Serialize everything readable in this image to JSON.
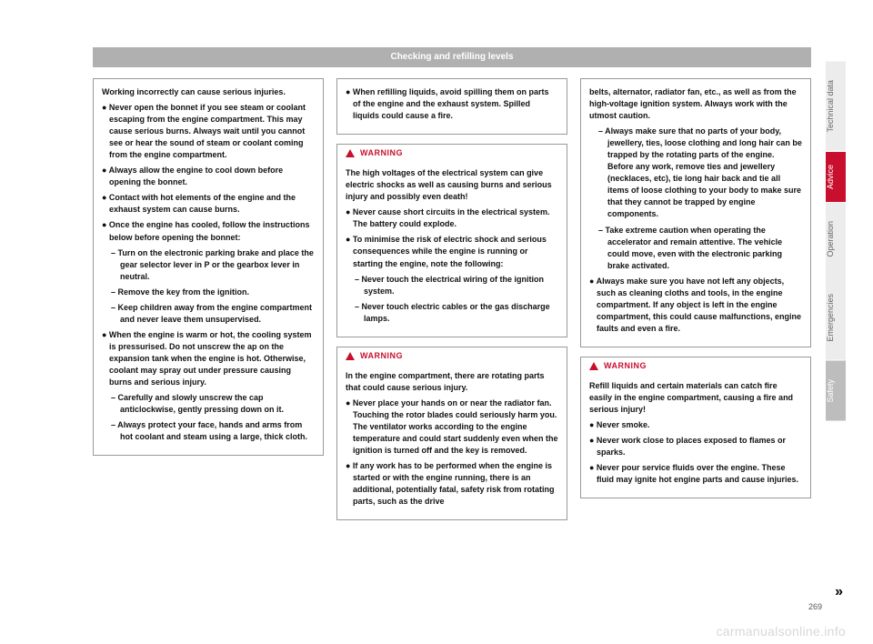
{
  "header": "Checking and refilling levels",
  "col1": {
    "box1": {
      "intro": "Working incorrectly can cause serious injuries.",
      "b1": "● Never open the bonnet if you see steam or coolant escaping from the engine compartment. This may cause serious burns. Always wait until you cannot see or hear the sound of steam or coolant coming from the engine compartment.",
      "b2": "● Always allow the engine to cool down before opening the bonnet.",
      "b3": "● Contact with hot elements of the engine and the exhaust system can cause burns.",
      "b4": "● Once the engine has cooled, follow the instructions below before opening the bonnet:",
      "d1": "– Turn on the electronic parking brake and place the gear selector lever in P or the gearbox lever in neutral.",
      "d2": "– Remove the key from the ignition.",
      "d3": "– Keep children away from the engine compartment and never leave them unsupervised.",
      "b5": "● When the engine is warm or hot, the cooling system is pressurised. Do not unscrew the ap on the expansion tank when the engine is hot. Otherwise, coolant may spray out under pressure causing burns and serious injury.",
      "d4": "– Carefully and slowly unscrew the cap anticlockwise, gently pressing down on it.",
      "d5": "– Always protect your face, hands and arms from hot coolant and steam using a large, thick cloth."
    }
  },
  "col2": {
    "box1": {
      "b1": "● When refilling liquids, avoid spilling them on parts of the engine and the exhaust system. Spilled liquids could cause a fire."
    },
    "warn1": {
      "title": "WARNING",
      "intro": "The high voltages of the electrical system can give electric shocks as well as causing burns and serious injury and possibly even death!",
      "b1": "● Never cause short circuits in the electrical system. The battery could explode.",
      "b2": "● To minimise the risk of electric shock and serious consequences while the engine is running or starting the engine, note the following:",
      "d1": "– Never touch the electrical wiring of the ignition system.",
      "d2": "– Never touch electric cables or the gas discharge lamps."
    },
    "warn2": {
      "title": "WARNING",
      "intro": "In the engine compartment, there are rotating parts that could cause serious injury.",
      "b1": "● Never place your hands on or near the radiator fan. Touching the rotor blades could seriously harm you. The ventilator works according to the engine temperature and could start suddenly even when the ignition is turned off and the key is removed.",
      "b2": "● If any work has to be performed when the engine is started or with the engine running, there is an additional, potentially fatal, safety risk from rotating parts, such as the drive"
    }
  },
  "col3": {
    "box1": {
      "intro": "belts, alternator, radiator fan, etc., as well as from the high-voltage ignition system. Always work with the utmost caution.",
      "d1": "– Always make sure that no parts of your body, jewellery, ties, loose clothing and long hair can be trapped by the rotating parts of the engine. Before any work, remove ties and jewellery (necklaces, etc), tie long hair back and tie all items of loose clothing to your body to make sure that they cannot be trapped by engine components.",
      "d2": "– Take extreme caution when operating the accelerator and remain attentive. The vehicle could move, even with the electronic parking brake activated.",
      "b1": "● Always make sure you have not left any objects, such as cleaning cloths and tools, in the engine compartment. If any object is left in the engine compartment, this could cause malfunctions, engine faults and even a fire."
    },
    "warn1": {
      "title": "WARNING",
      "intro": "Refill liquids and certain materials can catch fire easily in the engine compartment, causing a fire and serious injury!",
      "b1": "● Never smoke.",
      "b2": "● Never work close to places exposed to flames or sparks.",
      "b3": "● Never pour service fluids over the engine. These fluid may ignite hot engine parts and cause injuries."
    }
  },
  "tabs": {
    "t1": "Technical data",
    "t2": "Advice",
    "t3": "Operation",
    "t4": "Emergencies",
    "t5": "Safety"
  },
  "pagenum": "269",
  "watermark": "carmanualsonline.info",
  "colors": {
    "accent": "#c8102e",
    "header_bg": "#b0b0b0",
    "tab_bg": "#ececec",
    "tab_safety": "#bdbdbd"
  }
}
